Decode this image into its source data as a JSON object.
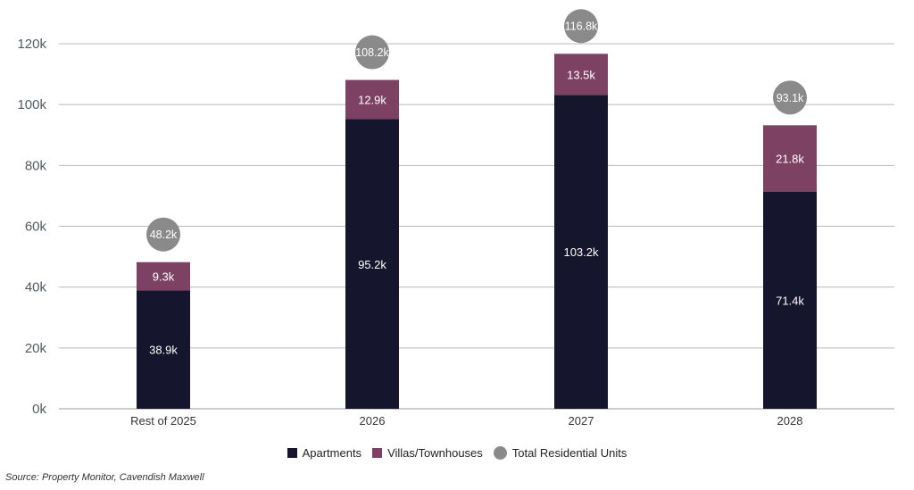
{
  "chart_data": {
    "type": "bar",
    "stacked": true,
    "categories": [
      "Rest of 2025",
      "2026",
      "2027",
      "2028"
    ],
    "series": [
      {
        "name": "Apartments",
        "values": [
          38.9,
          95.2,
          103.2,
          71.4
        ],
        "labels": [
          "38.9k",
          "95.2k",
          "103.2k",
          "71.4k"
        ],
        "color": "#15152d"
      },
      {
        "name": "Villas/Townhouses",
        "values": [
          9.3,
          12.9,
          13.5,
          21.8
        ],
        "labels": [
          "9.3k",
          "12.9k",
          "13.5k",
          "21.8k"
        ],
        "color": "#7d4263"
      }
    ],
    "totals": {
      "name": "Total Residential Units",
      "values": [
        48.2,
        108.2,
        116.8,
        93.1
      ],
      "labels": [
        "48.2k",
        "108.2k",
        "116.8k",
        "93.1k"
      ],
      "color": "#8a8a8a"
    },
    "y_ticks": [
      "0k",
      "20k",
      "40k",
      "60k",
      "80k",
      "100k",
      "120k"
    ],
    "ylim": [
      0,
      120
    ],
    "grid": true,
    "legend_position": "bottom-center"
  },
  "legend": {
    "apartments": "Apartments",
    "villas": "Villas/Townhouses",
    "total": "Total Residential Units"
  },
  "source": "Source: Property Monitor, Cavendish Maxwell"
}
